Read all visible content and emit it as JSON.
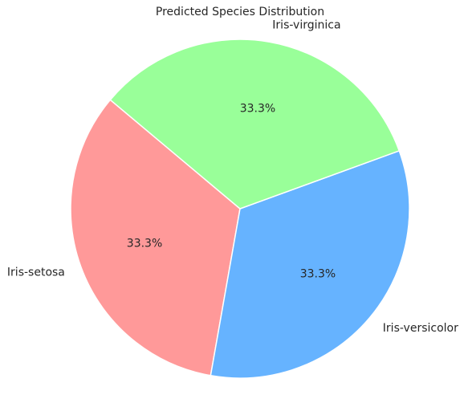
{
  "chart_data": {
    "type": "pie",
    "title": "Predicted Species Distribution",
    "categories": [
      "Iris-setosa",
      "Iris-versicolor",
      "Iris-virginica"
    ],
    "values": [
      33.3,
      33.3,
      33.3
    ],
    "percent_labels": [
      "33.3%",
      "33.3%",
      "33.3%"
    ],
    "colors": [
      "#ff9999",
      "#66b3ff",
      "#99ff99"
    ],
    "start_angle_deg": 140,
    "direction": "counterclockwise",
    "legend": "none"
  }
}
